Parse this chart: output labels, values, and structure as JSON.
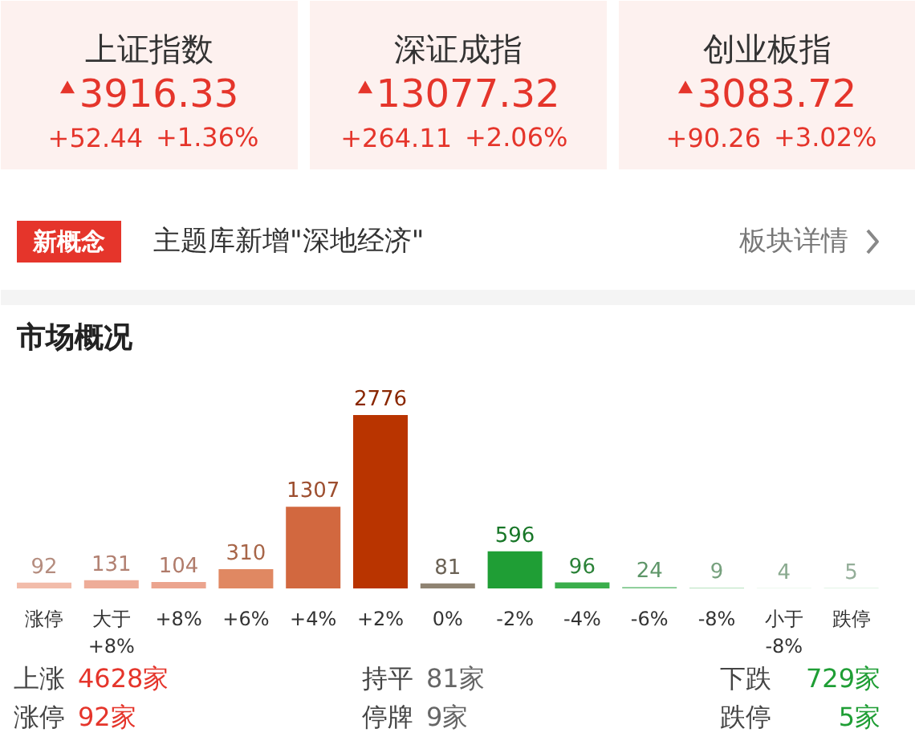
{
  "chart_data": [
    {
      "type": "other",
      "categories": [
        "上证指数",
        "深证成指",
        "创业板指"
      ],
      "values": [
        3916.33,
        13077.32,
        3083.72
      ],
      "data_labels": true,
      "colors": [
        "#fdf1ef",
        "#fdf1ef",
        "#fdf1ef"
      ],
      "annotations": [
        {
          "text": "+52.44",
          "x": "上证指数"
        },
        {
          "text": "+1.36%",
          "x": "上证指数"
        },
        {
          "text": "+264.11",
          "x": "深证成指"
        },
        {
          "text": "+2.06%",
          "x": "深证成指"
        },
        {
          "text": "+90.26",
          "x": "创业板指"
        },
        {
          "text": "+3.02%",
          "x": "创业板指"
        },
        "新概念",
        "主题库新增\"深地经济\"",
        "板块详情"
      ]
    },
    {
      "type": "bar",
      "title": "市场概况",
      "data_labels": true,
      "categories": [
        "涨停",
        "大于\n+8%",
        "+8%",
        "+6%",
        "+4%",
        "+2%",
        "0%",
        "-2%",
        "-4%",
        "-6%",
        "-8%",
        "小于\n-8%",
        "跌停"
      ],
      "values": [
        92,
        131,
        104,
        310,
        1307,
        2776,
        81,
        596,
        96,
        24,
        9,
        4,
        5
      ],
      "colors": [
        "#f2bcaa",
        "#eeac98",
        "#eba48e",
        "#e08862",
        "#d2683f",
        "#b93400",
        "#8f8372",
        "#1f9e35",
        "#3aae4b",
        "#7ec88c",
        "#9fd7a9",
        "#b9e3bf",
        "#c6e9cc"
      ],
      "annotations": [
        "上涨",
        "4628家",
        "持平",
        "81家",
        "下跌",
        "729家",
        "涨停",
        "92家",
        "停牌",
        "9家",
        "跌停",
        "5家"
      ]
    }
  ]
}
